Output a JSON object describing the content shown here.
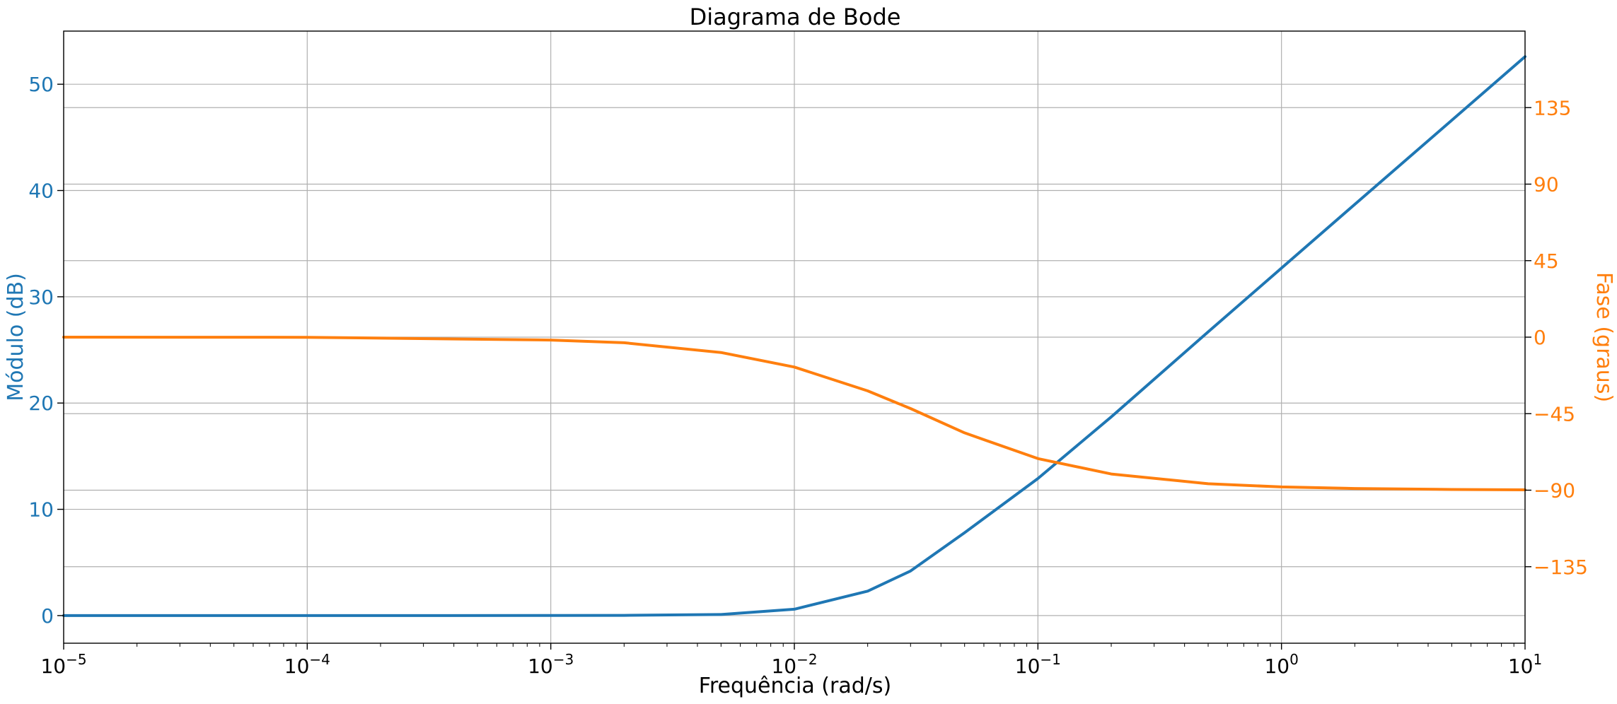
{
  "chart_data": {
    "type": "line",
    "title": "Diagrama de Bode",
    "xlabel": "Frequência (rad/s)",
    "ylabel_left": "Módulo (dB)",
    "ylabel_right": "Fase (graus)",
    "xscale": "log",
    "xlim": [
      1e-05,
      10
    ],
    "ylim_left": [
      -2.6,
      55
    ],
    "ylim_right": [
      -180,
      180
    ],
    "grid": true,
    "colors": {
      "magnitude": "#1f77b4",
      "phase": "#ff7f0e",
      "grid": "#b0b0b0",
      "axis": "#000000"
    },
    "x_ticks": [
      {
        "value": 1e-05,
        "base": "10",
        "exp": "−5"
      },
      {
        "value": 0.0001,
        "base": "10",
        "exp": "−4"
      },
      {
        "value": 0.001,
        "base": "10",
        "exp": "−3"
      },
      {
        "value": 0.01,
        "base": "10",
        "exp": "−2"
      },
      {
        "value": 0.1,
        "base": "10",
        "exp": "−1"
      },
      {
        "value": 1,
        "base": "10",
        "exp": "0"
      },
      {
        "value": 10,
        "base": "10",
        "exp": "1"
      }
    ],
    "y_ticks_left": [
      {
        "value": 0,
        "label": "0"
      },
      {
        "value": 10,
        "label": "10"
      },
      {
        "value": 20,
        "label": "20"
      },
      {
        "value": 30,
        "label": "30"
      },
      {
        "value": 40,
        "label": "40"
      },
      {
        "value": 50,
        "label": "50"
      }
    ],
    "y_ticks_right": [
      {
        "value": -135,
        "label": "−135"
      },
      {
        "value": -90,
        "label": "−90"
      },
      {
        "value": -45,
        "label": "−45"
      },
      {
        "value": 0,
        "label": "0"
      },
      {
        "value": 45,
        "label": "45"
      },
      {
        "value": 90,
        "label": "90"
      },
      {
        "value": 135,
        "label": "135"
      }
    ],
    "series": [
      {
        "axis": "left",
        "x": [
          1e-05,
          0.0001,
          0.001,
          0.002,
          0.005,
          0.01,
          0.02,
          0.03,
          0.05,
          0.1,
          0.2,
          0.5,
          1,
          2,
          5,
          10
        ],
        "values": [
          0,
          0,
          0.004,
          0.02,
          0.1,
          0.6,
          2.3,
          4.2,
          7.8,
          12.9,
          18.7,
          26.7,
          32.7,
          38.7,
          46.6,
          52.6
        ]
      },
      {
        "axis": "right",
        "x": [
          1e-05,
          0.0001,
          0.001,
          0.002,
          0.005,
          0.01,
          0.02,
          0.03,
          0.05,
          0.1,
          0.2,
          0.5,
          1,
          2,
          5,
          10
        ],
        "values": [
          0,
          -0.1,
          -1.7,
          -3.3,
          -9.0,
          -17.6,
          -31.6,
          -42.0,
          -56.3,
          -71.4,
          -80.5,
          -86.2,
          -88.1,
          -89.0,
          -89.6,
          -89.8
        ]
      }
    ]
  }
}
